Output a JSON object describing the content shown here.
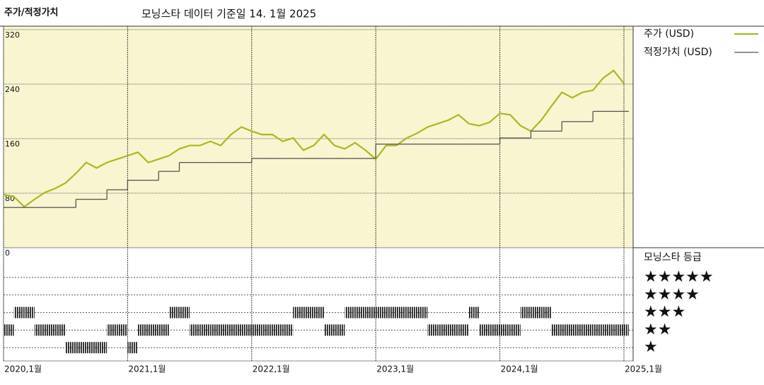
{
  "chart_data": {
    "type": "line",
    "title": "주가/적정가치",
    "subtitle": "모닝스타 데이터 기준일 14. 1월 2025",
    "x": [
      "2020-01",
      "2020-02",
      "2020-03",
      "2020-04",
      "2020-05",
      "2020-06",
      "2020-07",
      "2020-08",
      "2020-09",
      "2020-10",
      "2020-11",
      "2020-12",
      "2021-01",
      "2021-02",
      "2021-03",
      "2021-04",
      "2021-05",
      "2021-06",
      "2021-07",
      "2021-08",
      "2021-09",
      "2021-10",
      "2021-11",
      "2021-12",
      "2022-01",
      "2022-02",
      "2022-03",
      "2022-04",
      "2022-05",
      "2022-06",
      "2022-07",
      "2022-08",
      "2022-09",
      "2022-10",
      "2022-11",
      "2022-12",
      "2023-01",
      "2023-02",
      "2023-03",
      "2023-04",
      "2023-05",
      "2023-06",
      "2023-07",
      "2023-08",
      "2023-09",
      "2023-10",
      "2023-11",
      "2023-12",
      "2024-01",
      "2024-02",
      "2024-03",
      "2024-04",
      "2024-05",
      "2024-06",
      "2024-07",
      "2024-08",
      "2024-09",
      "2024-10",
      "2024-11",
      "2024-12",
      "2025-01"
    ],
    "series": [
      {
        "name": "주가 (USD)",
        "color": "#a9b823",
        "style": "line",
        "values": [
          78,
          75,
          60,
          71,
          81,
          87,
          95,
          109,
          125,
          117,
          125,
          130,
          135,
          140,
          125,
          130,
          135,
          145,
          150,
          150,
          156,
          150,
          166,
          177,
          171,
          166,
          166,
          156,
          161,
          143,
          150,
          166,
          150,
          145,
          154,
          143,
          130,
          150,
          150,
          161,
          168,
          177,
          182,
          187,
          195,
          182,
          179,
          184,
          197,
          195,
          179,
          171,
          187,
          208,
          228,
          220,
          228,
          231,
          249,
          260,
          241
        ]
      },
      {
        "name": "적정가치 (USD)",
        "color": "#555555",
        "style": "step",
        "values": [
          59,
          59,
          59,
          59,
          59,
          59,
          59,
          71,
          71,
          71,
          85,
          85,
          99,
          99,
          99,
          112,
          112,
          125,
          125,
          125,
          125,
          125,
          125,
          125,
          131,
          131,
          131,
          131,
          131,
          131,
          131,
          131,
          131,
          131,
          131,
          131,
          152,
          152,
          152,
          152,
          152,
          152,
          152,
          152,
          152,
          152,
          152,
          152,
          161,
          161,
          161,
          171,
          171,
          171,
          185,
          185,
          185,
          200,
          200,
          200,
          200
        ]
      }
    ],
    "rating_title": "모닝스타 등급",
    "rating_labels": [
      "★★★★★",
      "★★★★",
      "★★★",
      "★★",
      "★"
    ],
    "rating_levels": [
      5,
      4,
      3,
      2,
      1
    ],
    "ratings": [
      2,
      3,
      3,
      2,
      2,
      2,
      1,
      1,
      1,
      1,
      2,
      2,
      1,
      2,
      2,
      2,
      3,
      3,
      2,
      2,
      2,
      2,
      2,
      2,
      2,
      2,
      2,
      2,
      3,
      3,
      3,
      2,
      2,
      3,
      3,
      3,
      3,
      3,
      3,
      3,
      3,
      2,
      2,
      2,
      2,
      3,
      2,
      2,
      2,
      2,
      3,
      3,
      3,
      2,
      2,
      2,
      2,
      2,
      2,
      2,
      2
    ],
    "xlim": [
      "2020-01",
      "2025-01"
    ],
    "xticks": [
      {
        "value": "2020-01",
        "label": "2020,1월"
      },
      {
        "value": "2021-01",
        "label": "2021,1월"
      },
      {
        "value": "2022-01",
        "label": "2022,1월"
      },
      {
        "value": "2023-01",
        "label": "2023,1월"
      },
      {
        "value": "2024-01",
        "label": "2024,1월"
      },
      {
        "value": "2025-01",
        "label": "2025,1월"
      }
    ],
    "ylim": [
      0,
      325
    ],
    "yticks": [
      0,
      80,
      160,
      240,
      320
    ],
    "grid": true,
    "background": "#f8f5d0"
  }
}
